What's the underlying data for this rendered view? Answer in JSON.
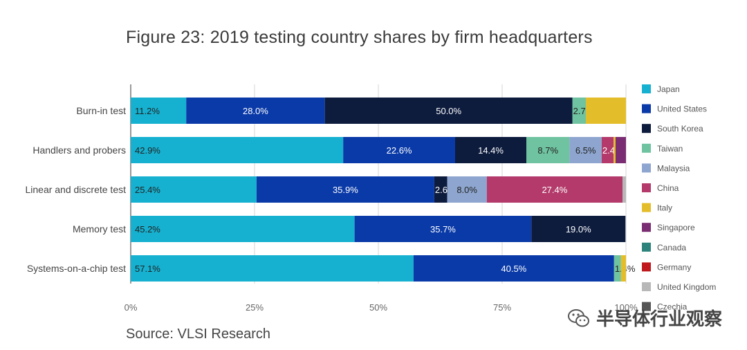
{
  "title": "Figure 23: 2019 testing country shares by firm headquarters",
  "source": "Source: VLSI Research",
  "watermark": "半导体行业观察",
  "colors": {
    "Japan": "#16b1d0",
    "United States": "#0a3aa8",
    "South Korea": "#0d1b3d",
    "Taiwan": "#6fc3a0",
    "Malaysia": "#8ea6cf",
    "China": "#b33a6a",
    "Italy": "#e4bd2a",
    "Singapore": "#7a2d73",
    "Canada": "#2c837b",
    "Germany": "#c0181c",
    "United Kingdom": "#b8b8b8",
    "Czechia": "#555555"
  },
  "chart_data": {
    "type": "bar",
    "orientation": "horizontal",
    "stacked": true,
    "categories": [
      "Burn-in test",
      "Handlers and probers",
      "Linear and discrete test",
      "Memory test",
      "Systems-on-a-chip test"
    ],
    "series": [
      {
        "name": "Japan",
        "values": [
          11.2,
          42.9,
          25.4,
          45.2,
          57.1
        ],
        "labels": [
          "11.2%",
          "42.9%",
          "25.4%",
          "45.2%",
          "57.1%"
        ]
      },
      {
        "name": "United States",
        "values": [
          28.0,
          22.6,
          35.9,
          35.7,
          40.5
        ],
        "labels": [
          "28.0%",
          "22.6%",
          "35.9%",
          "35.7%",
          "40.5%"
        ]
      },
      {
        "name": "South Korea",
        "values": [
          50.0,
          14.4,
          2.6,
          19.0,
          0
        ],
        "labels": [
          "50.0%",
          "14.4%",
          "2.6%",
          "19.0%",
          ""
        ]
      },
      {
        "name": "Taiwan",
        "values": [
          2.7,
          8.7,
          0,
          0,
          1.4
        ],
        "labels": [
          "2.7%",
          "8.7%",
          "",
          "",
          "1.4%"
        ]
      },
      {
        "name": "Malaysia",
        "values": [
          0,
          6.5,
          8.0,
          0,
          0
        ],
        "labels": [
          "",
          "6.5%",
          "8.0%",
          "",
          ""
        ]
      },
      {
        "name": "China",
        "values": [
          0,
          2.4,
          27.4,
          0,
          0
        ],
        "labels": [
          "",
          "2.4%",
          "27.4%",
          "",
          ""
        ]
      },
      {
        "name": "Italy",
        "values": [
          8.1,
          0.4,
          0,
          0,
          1.0
        ],
        "labels": [
          "",
          "",
          "",
          "",
          ""
        ]
      },
      {
        "name": "Singapore",
        "values": [
          0,
          2.1,
          0,
          0,
          0
        ],
        "labels": [
          "",
          "",
          "",
          "",
          ""
        ]
      },
      {
        "name": "Canada",
        "values": [
          0,
          0,
          0,
          0,
          0
        ],
        "labels": [
          "",
          "",
          "",
          "",
          ""
        ]
      },
      {
        "name": "Germany",
        "values": [
          0,
          0,
          0,
          0,
          0
        ],
        "labels": [
          "",
          "",
          "",
          "",
          ""
        ]
      },
      {
        "name": "United Kingdom",
        "values": [
          0,
          0,
          0.7,
          0,
          0
        ],
        "labels": [
          "",
          "",
          "",
          "",
          ""
        ]
      },
      {
        "name": "Czechia",
        "values": [
          0,
          0,
          0,
          0,
          0
        ],
        "labels": [
          "",
          "",
          "",
          "",
          ""
        ]
      }
    ],
    "xticks": [
      "0%",
      "25%",
      "50%",
      "75%",
      "100%"
    ],
    "xlim": [
      0,
      100
    ],
    "grid": true,
    "legend_position": "right"
  }
}
